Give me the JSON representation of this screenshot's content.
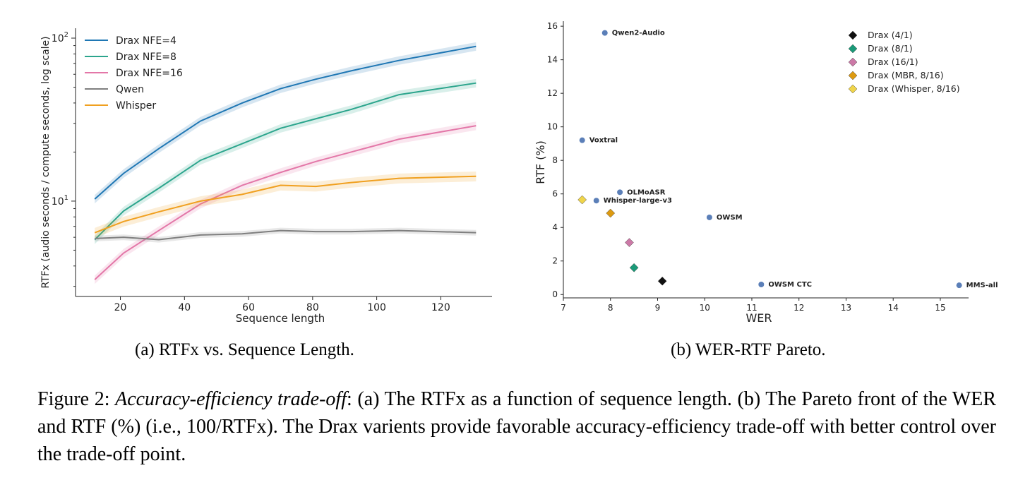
{
  "chart_data": [
    {
      "type": "line",
      "title": "",
      "xlabel": "Sequence length",
      "ylabel": "RTFx (audio seconds / compute seconds, log scale)",
      "yscale": "log",
      "xlim": [
        6,
        136
      ],
      "ylim": [
        2.6,
        115
      ],
      "xticks": [
        20,
        40,
        60,
        80,
        100,
        120
      ],
      "yticks": [
        {
          "value": 10,
          "base": "10",
          "exp": "1"
        },
        {
          "value": 100,
          "base": "10",
          "exp": "2"
        }
      ],
      "legend_position": "top-left",
      "series": [
        {
          "name": "Drax NFE=4",
          "color": "#1f77b4",
          "band": 0.06,
          "x": [
            12,
            21,
            32,
            45,
            58,
            70,
            81,
            92,
            107,
            131
          ],
          "y": [
            10.3,
            14.8,
            21,
            31,
            40,
            49,
            56,
            63,
            73,
            89
          ]
        },
        {
          "name": "Drax NFE=8",
          "color": "#2ca58d",
          "band": 0.06,
          "x": [
            12,
            21,
            32,
            45,
            58,
            70,
            81,
            92,
            107,
            131
          ],
          "y": [
            5.8,
            8.7,
            12,
            17.8,
            22.5,
            28,
            32,
            36.5,
            45,
            53
          ]
        },
        {
          "name": "Drax NFE=16",
          "color": "#e377a8",
          "band": 0.06,
          "x": [
            12,
            21,
            32,
            45,
            58,
            70,
            81,
            92,
            107,
            131
          ],
          "y": [
            3.3,
            4.8,
            6.6,
            9.6,
            12.5,
            15,
            17.5,
            20,
            24,
            29
          ]
        },
        {
          "name": "Qwen",
          "color": "#7f7f7f",
          "band": 0.04,
          "x": [
            12,
            21,
            32,
            45,
            58,
            70,
            81,
            92,
            107,
            131
          ],
          "y": [
            5.9,
            6.0,
            5.8,
            6.2,
            6.3,
            6.6,
            6.5,
            6.5,
            6.6,
            6.4
          ]
        },
        {
          "name": "Whisper",
          "color": "#f0a020",
          "band": 0.07,
          "x": [
            12,
            21,
            32,
            45,
            58,
            70,
            81,
            92,
            107,
            131
          ],
          "y": [
            6.4,
            7.5,
            8.6,
            10,
            11,
            12.5,
            12.3,
            13,
            13.8,
            14.2
          ]
        }
      ]
    },
    {
      "type": "scatter",
      "title": "",
      "xlabel": "WER",
      "ylabel": "RTF (%)",
      "xlim": [
        7,
        15.6
      ],
      "ylim": [
        -0.2,
        16.3
      ],
      "xticks": [
        7,
        8,
        9,
        10,
        11,
        12,
        13,
        14,
        15
      ],
      "yticks": [
        0,
        2,
        4,
        6,
        8,
        10,
        12,
        14,
        16
      ],
      "legend_position": "top-right",
      "baselines": [
        {
          "label": "Qwen2-Audio",
          "x": 7.88,
          "y": 15.6
        },
        {
          "label": "Voxtral",
          "x": 7.4,
          "y": 9.2
        },
        {
          "label": "OLMoASR",
          "x": 8.2,
          "y": 6.1
        },
        {
          "label": "Whisper-large-v3",
          "x": 7.7,
          "y": 5.6
        },
        {
          "label": "OWSM",
          "x": 10.1,
          "y": 4.6
        },
        {
          "label": "OWSM CTC",
          "x": 11.2,
          "y": 0.6
        },
        {
          "label": "MMS-all",
          "x": 15.4,
          "y": 0.55
        }
      ],
      "baseline_color": "#5b7fb8",
      "drax": [
        {
          "label": "Drax (4/1)",
          "x": 9.1,
          "y": 0.8,
          "color": "#111111"
        },
        {
          "label": "Drax (8/1)",
          "x": 8.5,
          "y": 1.6,
          "color": "#1a9a78"
        },
        {
          "label": "Drax (16/1)",
          "x": 8.4,
          "y": 3.1,
          "color": "#cc79a7"
        },
        {
          "label": "Drax (MBR, 8/16)",
          "x": 8.0,
          "y": 4.85,
          "color": "#dd9a10"
        },
        {
          "label": "Drax (Whisper, 8/16)",
          "x": 7.4,
          "y": 5.65,
          "color": "#f0d54a"
        }
      ]
    }
  ],
  "captions": {
    "a": "(a) RTFx vs. Sequence Length.",
    "b": "(b) WER-RTF Pareto.",
    "figure_label": "Figure 2:",
    "figure_title": "Accuracy-efficiency trade-off",
    "figure_body": ": (a) The RTFx as a function of sequence length. (b) The Pareto front of the WER and RTF (%) (i.e., 100/RTFx). The Drax varients provide favorable accuracy-efficiency trade-off with better control over the trade-off point."
  }
}
